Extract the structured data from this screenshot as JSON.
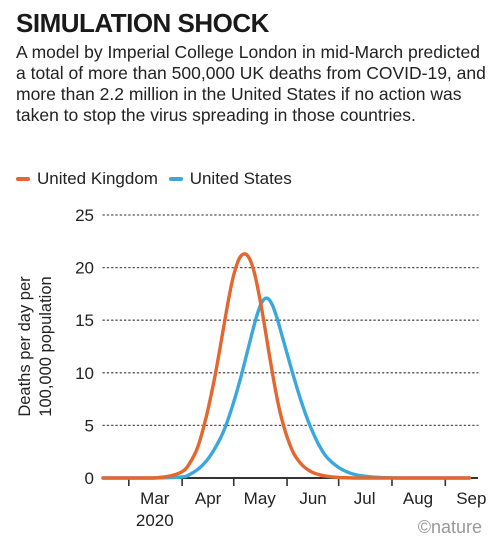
{
  "title": "SIMULATION SHOCK",
  "description": "A model by Imperial College London in mid-March predicted a total of more than 500,000 UK deaths from COVID-19, and more than 2.2 million in the United States if no action was taken to stop the virus spreading in those countries.",
  "credit": "©nature",
  "colors": {
    "uk": "#e3672e",
    "us": "#3aa8dc",
    "axis": "#333333",
    "grid": "#555555"
  },
  "chart_data": {
    "type": "line",
    "ylabel": "Deaths per day per 100,000 population",
    "ylabel_lines": [
      "Deaths per day per",
      "100,000 population"
    ],
    "ylim": [
      0,
      25
    ],
    "yticks": [
      0,
      5,
      10,
      15,
      20,
      25
    ],
    "xlim": [
      "2020-02-15",
      "2020-09-20"
    ],
    "xticks": [
      {
        "date": "2020-03-01",
        "label": "Mar"
      },
      {
        "date": "2020-04-01",
        "label": "Apr"
      },
      {
        "date": "2020-05-01",
        "label": "May"
      },
      {
        "date": "2020-06-01",
        "label": "Jun"
      },
      {
        "date": "2020-07-01",
        "label": "Jul"
      },
      {
        "date": "2020-08-01",
        "label": "Aug"
      },
      {
        "date": "2020-09-01",
        "label": "Sep"
      }
    ],
    "year_label": "2020",
    "grid": "horizontal-dotted",
    "legend": "top-left",
    "series": [
      {
        "name": "United Kingdom",
        "color": "#e3672e",
        "x": [
          "2020-02-15",
          "2020-03-01",
          "2020-03-15",
          "2020-03-25",
          "2020-04-01",
          "2020-04-05",
          "2020-04-10",
          "2020-04-15",
          "2020-04-20",
          "2020-04-25",
          "2020-04-28",
          "2020-05-01",
          "2020-05-04",
          "2020-05-07",
          "2020-05-10",
          "2020-05-13",
          "2020-05-16",
          "2020-05-19",
          "2020-05-22",
          "2020-05-25",
          "2020-05-28",
          "2020-06-01",
          "2020-06-05",
          "2020-06-10",
          "2020-06-15",
          "2020-06-20",
          "2020-06-25",
          "2020-07-01",
          "2020-07-10",
          "2020-07-20",
          "2020-08-01",
          "2020-08-15",
          "2020-09-01",
          "2020-09-15"
        ],
        "y": [
          0,
          0,
          0,
          0.2,
          0.6,
          1.3,
          2.9,
          5.8,
          9.6,
          14.2,
          17.0,
          19.3,
          20.8,
          21.3,
          20.9,
          19.5,
          17.2,
          14.4,
          11.4,
          8.6,
          6.2,
          3.9,
          2.3,
          1.2,
          0.6,
          0.3,
          0.15,
          0.05,
          0,
          0,
          0,
          0,
          0,
          0
        ]
      },
      {
        "name": "United States",
        "color": "#3aa8dc",
        "x": [
          "2020-02-15",
          "2020-03-15",
          "2020-04-01",
          "2020-04-05",
          "2020-04-10",
          "2020-04-15",
          "2020-04-20",
          "2020-04-25",
          "2020-04-30",
          "2020-05-05",
          "2020-05-10",
          "2020-05-14",
          "2020-05-17",
          "2020-05-20",
          "2020-05-23",
          "2020-05-26",
          "2020-05-30",
          "2020-06-04",
          "2020-06-09",
          "2020-06-14",
          "2020-06-19",
          "2020-06-24",
          "2020-07-01",
          "2020-07-08",
          "2020-07-15",
          "2020-07-25",
          "2020-08-05",
          "2020-08-20",
          "2020-09-05",
          "2020-09-15"
        ],
        "y": [
          0,
          0,
          0.1,
          0.3,
          0.8,
          1.6,
          2.8,
          4.4,
          6.7,
          9.5,
          12.7,
          15.2,
          16.6,
          17.1,
          16.6,
          15.3,
          13.0,
          10.1,
          7.4,
          5.1,
          3.3,
          2.0,
          1.0,
          0.45,
          0.2,
          0.05,
          0,
          0,
          0,
          0
        ]
      }
    ]
  }
}
